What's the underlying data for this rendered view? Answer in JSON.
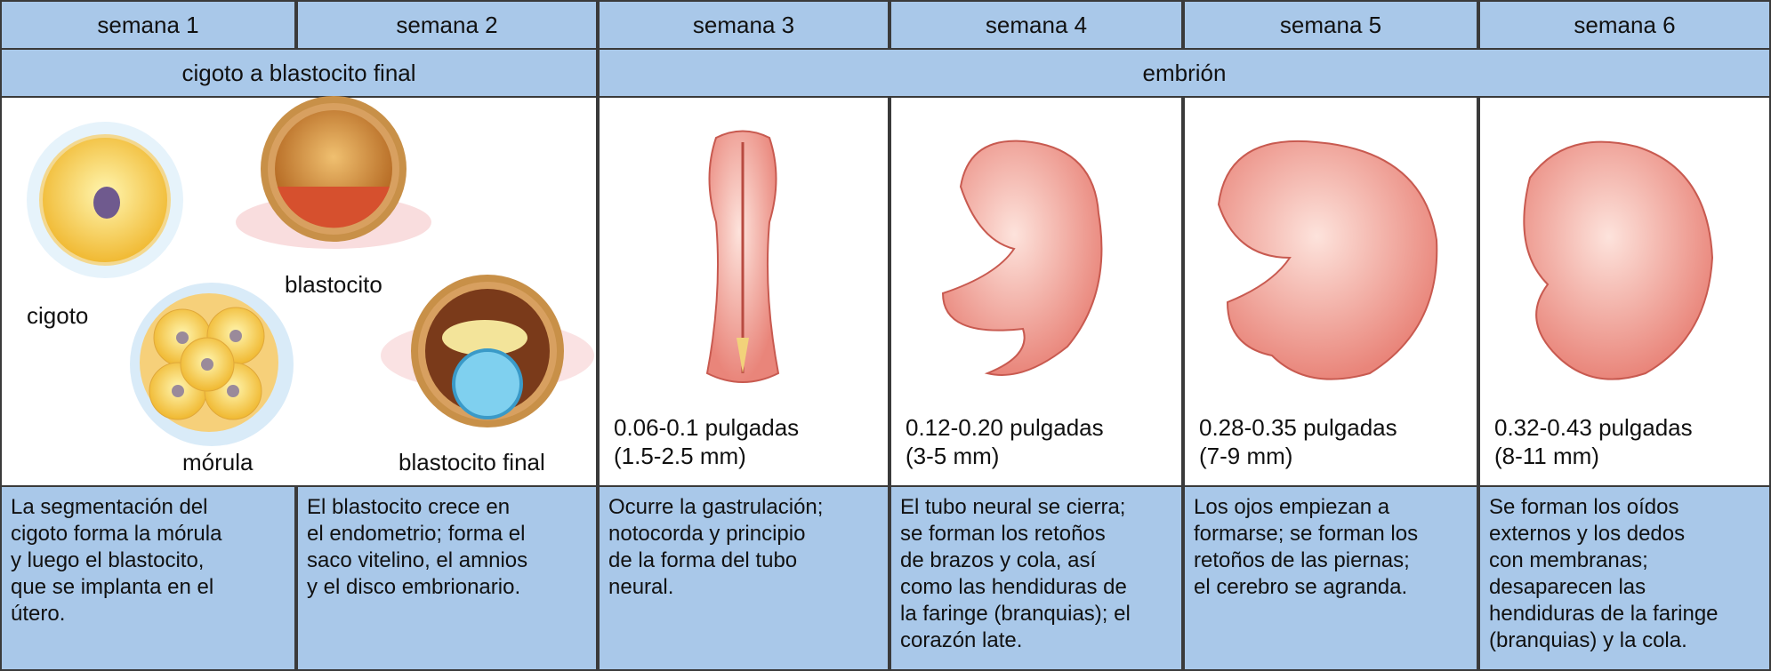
{
  "table": {
    "header": [
      "semana 1",
      "semana 2",
      "semana 3",
      "semana 4",
      "semana 5",
      "semana 6"
    ],
    "groups": [
      "cigoto a blastocito final",
      "embrión"
    ],
    "stage_labels": {
      "zygote": "cigoto",
      "morula": "mórula",
      "blastocyst": "blastocito",
      "final_blastocyst": "blastocito final"
    },
    "sizes": [
      {
        "inches": "0.06-0.1 pulgadas",
        "mm": "(1.5-2.5 mm)"
      },
      {
        "inches": "0.12-0.20 pulgadas",
        "mm": "(3-5 mm)"
      },
      {
        "inches": "0.28-0.35 pulgadas",
        "mm": "(7-9 mm)"
      },
      {
        "inches": "0.32-0.43 pulgadas",
        "mm": "(8-11 mm)"
      }
    ],
    "descriptions": [
      [
        "La segmentación del",
        "cigoto forma la mórula",
        "y luego el blastocito,",
        "que se implanta en el",
        "útero."
      ],
      [
        "El blastocito crece en",
        "el endometrio; forma el",
        "saco vitelino, el amnios",
        "y el disco embrionario."
      ],
      [
        "Ocurre la gastrulación;",
        "notocorda y principio",
        "de la forma del tubo",
        "neural."
      ],
      [
        "El tubo neural se cierra;",
        "se forman los retoños",
        "de brazos y cola, así",
        "como las hendiduras de",
        "la faringe (branquias); el",
        "corazón late."
      ],
      [
        "Los ojos empiezan a",
        "formarse; se forman los",
        "retoños de las piernas;",
        "el cerebro se agranda."
      ],
      [
        "Se forman los oídos",
        "externos y los dedos",
        "con membranas;",
        "desaparecen las",
        "hendiduras de la faringe",
        "(branquias) y la cola."
      ]
    ]
  }
}
